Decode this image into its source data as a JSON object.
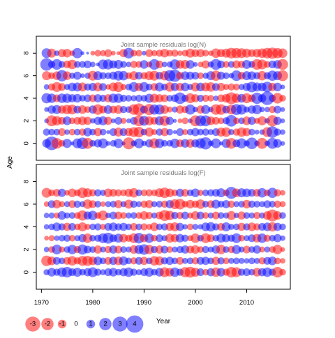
{
  "colors": {
    "positive": "#0000ff",
    "negative": "#ff0000",
    "fill_alpha": 0.5,
    "panel_title": "#777777",
    "axis": "#000000"
  },
  "y_axis_label": "Age",
  "x_axis_label": "Year",
  "legend": {
    "labels": [
      "-3",
      "-2",
      "-1",
      "0",
      "1",
      "2",
      "3",
      "4"
    ],
    "values": [
      -3,
      -2,
      -1,
      0,
      1,
      2,
      3,
      4
    ]
  },
  "chart_data": [
    {
      "type": "scatter",
      "title": "Joint sample residuals log(N)",
      "xlabel": "",
      "ylabel": "Age",
      "xlim": [
        1969,
        2018.5
      ],
      "ylim": [
        -1.5,
        9.5
      ],
      "x_ticks": [
        1970,
        1980,
        1990,
        2000,
        2010
      ],
      "x_tick_labels": [
        "1970",
        "1980",
        "1990",
        "2000",
        "2010"
      ],
      "x_ticks_shown": false,
      "y_ticks": [
        0,
        2,
        4,
        6,
        8
      ],
      "y_tick_labels": [
        "0",
        "2",
        "4",
        "6",
        "8"
      ],
      "grid": false,
      "encoding": "bubble area proportional to |residual|; blue = positive, red = negative",
      "years": [
        1971,
        1972,
        1973,
        1974,
        1975,
        1976,
        1977,
        1978,
        1979,
        1980,
        1981,
        1982,
        1983,
        1984,
        1985,
        1986,
        1987,
        1988,
        1989,
        1990,
        1991,
        1992,
        1993,
        1994,
        1995,
        1996,
        1997,
        1998,
        1999,
        2000,
        2001,
        2002,
        2003,
        2004,
        2005,
        2006,
        2007,
        2008,
        2009,
        2010,
        2011,
        2012,
        2013,
        2014,
        2015,
        2016,
        2017
      ],
      "ages": [
        0,
        1,
        2,
        3,
        4,
        5,
        6,
        7,
        8
      ],
      "residuals": [
        [
          1.0,
          2.5,
          -1.5,
          -0.6,
          1.1,
          0.2,
          1.3,
          1.8,
          -1.6,
          0.6,
          0.9,
          1.3,
          0.3,
          0.6,
          1.2,
          0.2,
          -1.9,
          0.5,
          1.3,
          0.4,
          0.9,
          -1.4,
          1.2,
          0.6,
          0.6,
          1.2,
          -0.8,
          1.0,
          -1.0,
          0.9,
          1.4,
          2.0,
          0.4,
          1.3,
          0.2,
          1.1,
          -1.5,
          0.8,
          1.4,
          0.5,
          1.8,
          0.4,
          -1.6,
          0.4,
          1.6,
          1.0,
          0.3
        ],
        [
          0.7,
          0.6,
          0.6,
          -0.8,
          0.4,
          -0.6,
          0.6,
          -0.7,
          1.0,
          0.6,
          -0.9,
          0.6,
          0.2,
          0.8,
          -1.1,
          0.8,
          -0.9,
          -1.3,
          -1.5,
          0.6,
          -1.1,
          -0.5,
          0.7,
          -0.9,
          0.6,
          0.2,
          0.8,
          -0.5,
          0.6,
          0.9,
          0.6,
          0.7,
          0.5,
          0.8,
          -1.1,
          -1.2,
          0.5,
          -0.7,
          -1.2,
          -0.9,
          0.6,
          0.3,
          0.4,
          -1.3,
          1.8,
          0.7,
          0.4
        ],
        [
          0.3,
          -1.6,
          -1.2,
          -0.8,
          1.0,
          -0.6,
          -0.8,
          -1.0,
          -0.9,
          0.4,
          0.9,
          1.1,
          -0.9,
          0.3,
          0.8,
          -0.5,
          0.3,
          0.8,
          -1.6,
          1.3,
          -1.1,
          -0.8,
          1.1,
          -1.4,
          0.9,
          0.2,
          -0.3,
          -0.6,
          0.3,
          -1.6,
          1.6,
          1.6,
          -1.0,
          -0.8,
          -0.6,
          0.7,
          1.8,
          -0.6,
          0.6,
          -1.0,
          0.9,
          -0.5,
          -1.1,
          0.4,
          -1.7,
          0.9,
          0.3
        ],
        [
          0.3,
          0.9,
          1.1,
          -0.9,
          -1.2,
          -1.3,
          0.8,
          -1.0,
          -0.6,
          0.9,
          -1.5,
          -0.8,
          1.0,
          -0.8,
          -1.0,
          0.7,
          0.6,
          -1.5,
          -2.0,
          0.8,
          -1.7,
          1.4,
          1.4,
          -1.0,
          -0.5,
          0.5,
          -0.9,
          -0.7,
          1.4,
          0.4,
          -0.9,
          1.1,
          0.4,
          -1.5,
          -1.5,
          0.8,
          -1.3,
          1.6,
          1.4,
          0.5,
          0.9,
          1.2,
          0.4,
          0.4,
          -0.7,
          0.8,
          0.3
        ],
        [
          1.4,
          1.2,
          -0.8,
          1.2,
          1.2,
          0.9,
          1.0,
          0.6,
          0.8,
          -0.8,
          0.9,
          0.7,
          -0.9,
          1.2,
          1.2,
          0.7,
          0.6,
          0.5,
          0.7,
          0.6,
          1.1,
          -1.1,
          -0.9,
          -0.8,
          0.6,
          0.8,
          1.8,
          0.7,
          -1.3,
          -0.9,
          0.7,
          -0.7,
          -0.6,
          0.4,
          -0.8,
          -1.0,
          -1.9,
          -1.2,
          1.0,
          -1.3,
          -0.8,
          1.7,
          0.9,
          2.5,
          0.7,
          -1.5,
          -0.6
        ],
        [
          0.4,
          -0.7,
          -1.3,
          -0.8,
          0.5,
          1.0,
          1.1,
          -1.1,
          0.7,
          0.9,
          -1.1,
          0.8,
          -0.4,
          -1.1,
          -1.4,
          -0.5,
          0.6,
          1.3,
          -0.9,
          1.3,
          0.6,
          -0.8,
          1.1,
          0.6,
          -1.2,
          0.9,
          -0.9,
          1.0,
          0.5,
          -1.1,
          1.0,
          -1.1,
          -1.2,
          0.8,
          -0.9,
          -0.5,
          -0.7,
          -0.6,
          0.5,
          0.9,
          1.5,
          1.1,
          1.0,
          1.5,
          -0.9,
          1.0,
          0.3
        ],
        [
          -1.1,
          -0.6,
          -1.0,
          1.7,
          -1.0,
          0.5,
          0.9,
          0.3,
          0.5,
          -1.3,
          1.1,
          0.7,
          0.6,
          0.9,
          1.3,
          1.2,
          -0.6,
          -1.1,
          0.8,
          -0.7,
          -1.1,
          -1.3,
          0.8,
          -1.2,
          1.7,
          2.0,
          -0.8,
          1.0,
          0.9,
          0.8,
          -0.6,
          0.5,
          1.1,
          -1.4,
          0.9,
          0.6,
          0.4,
          1.5,
          -0.8,
          1.1,
          1.0,
          0.7,
          -1.2,
          0.7,
          1.4,
          1.1,
          -1.6
        ],
        [
          2.1,
          0.7,
          1.5,
          0.6,
          -0.8,
          -1.2,
          0.6,
          0.6,
          0.8,
          0.4,
          0.2,
          1.3,
          1.4,
          0.9,
          1.1,
          0.6,
          0.4,
          -0.7,
          -0.6,
          1.0,
          -0.5,
          1.5,
          -0.8,
          0.4,
          0.5,
          1.4,
          -1.0,
          -1.1,
          1.0,
          0.3,
          -0.4,
          -0.9,
          0.5,
          1.6,
          0.8,
          -0.6,
          0.6,
          -0.9,
          -0.7,
          1.1,
          0.6,
          -1.5,
          -1.3,
          -0.6,
          0.8,
          1.0,
          -1.6
        ],
        [
          1.3,
          -1.1,
          0.4,
          -0.9,
          -1.0,
          -0.4,
          1.4,
          0.2,
          0.1,
          -0.3,
          -0.6,
          -0.5,
          -0.8,
          -0.3,
          -0.2,
          -0.9,
          1.5,
          -0.6,
          -0.6,
          0.3,
          -0.8,
          -0.5,
          -0.7,
          -1.0,
          -0.6,
          -0.7,
          -0.4,
          -0.6,
          -1.1,
          -0.8,
          -0.9,
          -0.6,
          -0.4,
          -1.2,
          -0.9,
          -1.1,
          -1.5,
          -1.4,
          -1.3,
          -1.1,
          -0.8,
          -1.0,
          -1.2,
          -1.5,
          -1.7,
          -1.4,
          -1.2
        ]
      ]
    },
    {
      "type": "scatter",
      "title": "Joint sample residuals log(F)",
      "xlabel": "Year",
      "ylabel": "Age",
      "xlim": [
        1969,
        2018.5
      ],
      "ylim": [
        -1.5,
        9.5
      ],
      "x_ticks": [
        1970,
        1980,
        1990,
        2000,
        2010
      ],
      "x_tick_labels": [
        "1970",
        "1980",
        "1990",
        "2000",
        "2010"
      ],
      "y_ticks": [
        0,
        2,
        4,
        6,
        8
      ],
      "y_tick_labels": [
        "0",
        "2",
        "4",
        "6",
        "8"
      ],
      "grid": false,
      "encoding": "bubble area proportional to |residual|; blue = positive, red = negative",
      "years": [
        1971,
        1972,
        1973,
        1974,
        1975,
        1976,
        1977,
        1978,
        1979,
        1980,
        1981,
        1982,
        1983,
        1984,
        1985,
        1986,
        1987,
        1988,
        1989,
        1990,
        1991,
        1992,
        1993,
        1994,
        1995,
        1996,
        1997,
        1998,
        1999,
        2000,
        2001,
        2002,
        2003,
        2004,
        2005,
        2006,
        2007,
        2008,
        2009,
        2010,
        2011,
        2012,
        2013,
        2014,
        2015,
        2016,
        2017
      ],
      "ages": [
        0,
        1,
        2,
        3,
        4,
        5,
        6,
        7
      ],
      "residuals": [
        [
          0.5,
          1.0,
          0.7,
          1.2,
          1.5,
          0.8,
          1.1,
          0.6,
          0.9,
          1.3,
          0.7,
          0.5,
          0.8,
          1.0,
          0.6,
          0.9,
          1.2,
          0.7,
          0.5,
          0.8,
          1.1,
          0.6,
          1.0,
          -1.3,
          -1.0,
          1.2,
          0.7,
          -1.4,
          -1.6,
          -1.1,
          0.8,
          -0.6,
          0.9,
          -1.2,
          1.0,
          -0.7,
          -1.5,
          -1.3,
          0.7,
          0.8,
          0.6,
          -1.0,
          0.9,
          1.2,
          0.7,
          -1.5,
          -0.6
        ],
        [
          -1.5,
          -1.0,
          0.8,
          0.6,
          -0.8,
          -1.2,
          -0.7,
          -1.3,
          -1.4,
          -1.0,
          1.0,
          0.6,
          -0.8,
          0.9,
          -1.0,
          1.1,
          0.6,
          -0.7,
          0.8,
          -0.9,
          0.6,
          -1.2,
          -1.1,
          0.7,
          0.9,
          0.6,
          -0.8,
          0.5,
          0.6,
          -0.7,
          0.8,
          0.9,
          0.6,
          -0.9,
          0.7,
          -0.6,
          0.5,
          0.6,
          0.5,
          0.4,
          0.6,
          0.5,
          -0.7,
          0.8,
          1.0,
          -0.6,
          -0.4
        ],
        [
          0.4,
          -0.6,
          1.3,
          -0.5,
          0.6,
          1.2,
          -0.7,
          1.4,
          0.8,
          0.6,
          -0.9,
          0.5,
          -0.7,
          0.9,
          -0.8,
          0.6,
          0.5,
          -1.0,
          1.1,
          1.5,
          -1.2,
          0.7,
          -0.9,
          0.8,
          -0.6,
          0.5,
          0.7,
          0.9,
          -0.8,
          -1.0,
          -0.6,
          0.7,
          0.5,
          0.9,
          -1.2,
          0.6,
          -0.7,
          1.1,
          0.5,
          -0.8,
          0.6,
          0.9,
          -0.5,
          0.5,
          -0.6,
          -1.2,
          -0.3
        ],
        [
          -0.3,
          -0.5,
          0.4,
          0.6,
          0.7,
          -0.6,
          0.5,
          0.9,
          -1.2,
          0.6,
          0.7,
          1.3,
          1.6,
          0.8,
          1.1,
          -1.0,
          -0.7,
          -1.3,
          1.5,
          -0.9,
          1.2,
          -0.6,
          0.8,
          0.5,
          -1.1,
          -0.9,
          1.0,
          0.7,
          -0.5,
          -1.2,
          0.6,
          -1.3,
          -0.8,
          0.6,
          1.1,
          0.9,
          0.7,
          1.3,
          -0.6,
          0.5,
          0.8,
          -1.0,
          1.2,
          -0.7,
          0.6,
          0.9,
          0.4
        ],
        [
          0.4,
          0.6,
          1.0,
          0.7,
          -0.9,
          0.8,
          -0.6,
          -1.1,
          -0.5,
          0.6,
          0.7,
          -0.5,
          0.8,
          1.0,
          0.7,
          0.9,
          0.6,
          -0.8,
          0.6,
          -0.7,
          -0.5,
          -1.0,
          0.6,
          0.7,
          -0.9,
          -1.1,
          0.9,
          0.4,
          -0.6,
          0.5,
          0.4,
          1.0,
          1.2,
          0.7,
          -0.8,
          1.1,
          0.5,
          0.6,
          -0.9,
          0.7,
          -1.0,
          -0.7,
          0.8,
          1.0,
          -1.2,
          0.9,
          0.6
        ],
        [
          0.4,
          0.5,
          -0.5,
          1.0,
          0.5,
          0.6,
          -0.6,
          -1.4,
          0.9,
          1.2,
          -0.6,
          -1.3,
          0.4,
          0.8,
          -0.8,
          -0.6,
          0.5,
          0.6,
          -0.6,
          -1.0,
          -0.7,
          0.5,
          -0.8,
          -1.6,
          -1.2,
          0.7,
          -0.7,
          0.8,
          -0.5,
          -1.0,
          0.8,
          -0.6,
          0.5,
          -0.8,
          0.6,
          0.5,
          -1.1,
          0.4,
          -0.9,
          0.6,
          0.5,
          -0.7,
          0.5,
          -1.0,
          -1.9,
          -1.0,
          0.6
        ],
        [
          -0.4,
          0.8,
          -1.0,
          -0.5,
          0.5,
          -0.8,
          0.7,
          0.5,
          -1.2,
          -0.8,
          0.6,
          -0.4,
          0.5,
          0.6,
          -0.9,
          0.5,
          -1.1,
          0.7,
          0.5,
          -0.7,
          -0.9,
          0.5,
          0.6,
          -0.7,
          0.9,
          -1.3,
          -1.5,
          -0.6,
          -1.0,
          -0.7,
          -1.2,
          0.6,
          -0.8,
          1.1,
          0.6,
          0.9,
          -0.7,
          0.5,
          0.6,
          -1.0,
          0.7,
          0.6,
          0.5,
          0.8,
          0.6,
          -0.7,
          -0.5
        ],
        [
          -1.3,
          -0.6,
          -0.8,
          0.9,
          -0.4,
          -1.0,
          -0.6,
          -1.5,
          -1.1,
          -0.7,
          0.7,
          0.5,
          -1.0,
          -0.8,
          -0.7,
          -0.6,
          -0.9,
          -1.2,
          0.6,
          -0.6,
          -0.7,
          -0.6,
          -1.1,
          -1.5,
          -1.0,
          -0.6,
          0.9,
          -0.8,
          0.6,
          1.0,
          -0.5,
          0.6,
          0.7,
          0.8,
          1.1,
          -0.6,
          1.9,
          -1.0,
          1.1,
          1.0,
          0.8,
          -0.8,
          1.2,
          -0.6,
          1.4,
          -0.7,
          -0.4
        ]
      ]
    }
  ]
}
